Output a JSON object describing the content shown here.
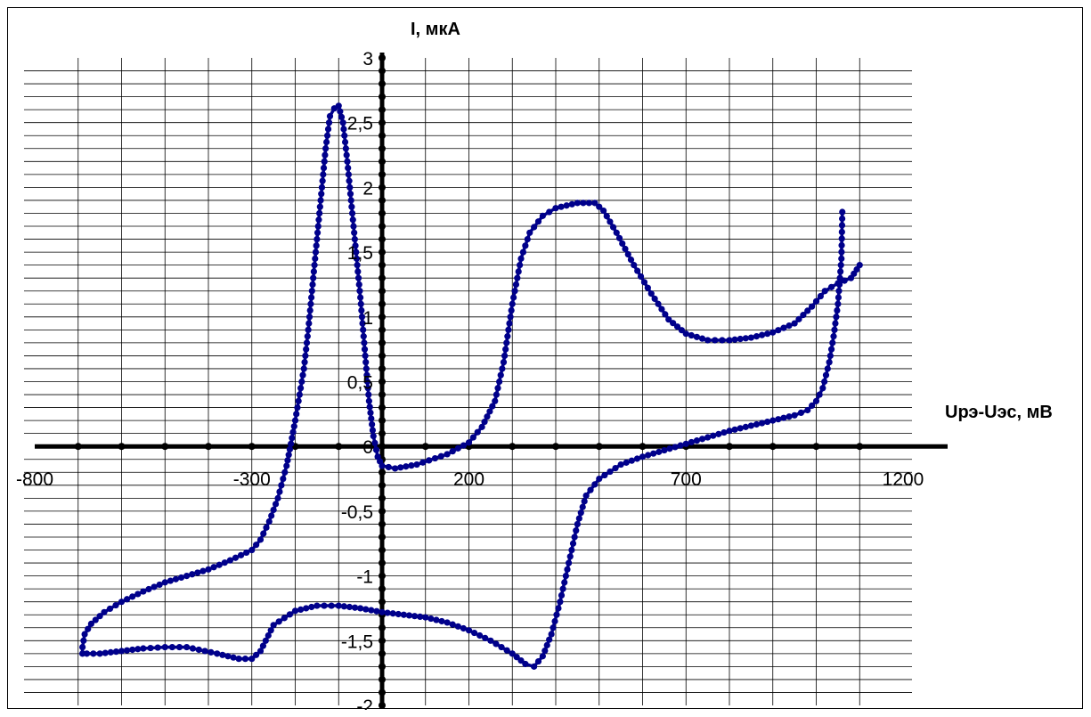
{
  "chart_data": {
    "type": "line",
    "title": "",
    "xlabel": "Uрэ-Uэс, мВ",
    "ylabel": "I, мкА",
    "xlim": [
      -800,
      1200
    ],
    "ylim": [
      -2,
      3
    ],
    "xticks": [
      -800,
      -300,
      200,
      700,
      1200
    ],
    "xtick_labels": [
      "-800",
      "-300",
      "200",
      "700",
      "1200"
    ],
    "yticks": [
      -2,
      -1.5,
      -1,
      -0.5,
      0,
      0.5,
      1,
      1.5,
      2,
      2.5,
      3
    ],
    "ytick_labels": [
      "-2",
      "-1,5",
      "-1",
      "-0,5",
      "0",
      "0,5",
      "1",
      "1,5",
      "2",
      "2,5",
      "3"
    ],
    "grid": true,
    "series_color": "#00008B",
    "series": [
      {
        "points": [
          [
            1060,
            1.81
          ],
          [
            1058,
            1.45
          ],
          [
            1050,
            1.1
          ],
          [
            1040,
            0.85
          ],
          [
            1030,
            0.65
          ],
          [
            1015,
            0.45
          ],
          [
            1000,
            0.35
          ],
          [
            980,
            0.28
          ],
          [
            950,
            0.24
          ],
          [
            900,
            0.2
          ],
          [
            850,
            0.16
          ],
          [
            800,
            0.12
          ],
          [
            750,
            0.07
          ],
          [
            700,
            0.02
          ],
          [
            650,
            -0.03
          ],
          [
            600,
            -0.08
          ],
          [
            550,
            -0.14
          ],
          [
            500,
            -0.25
          ],
          [
            470,
            -0.38
          ],
          [
            450,
            -0.6
          ],
          [
            430,
            -0.9
          ],
          [
            410,
            -1.2
          ],
          [
            390,
            -1.45
          ],
          [
            370,
            -1.62
          ],
          [
            350,
            -1.7
          ],
          [
            330,
            -1.68
          ],
          [
            300,
            -1.6
          ],
          [
            250,
            -1.5
          ],
          [
            200,
            -1.42
          ],
          [
            150,
            -1.36
          ],
          [
            100,
            -1.32
          ],
          [
            50,
            -1.3
          ],
          [
            0,
            -1.28
          ],
          [
            -50,
            -1.25
          ],
          [
            -100,
            -1.23
          ],
          [
            -150,
            -1.23
          ],
          [
            -200,
            -1.27
          ],
          [
            -250,
            -1.38
          ],
          [
            -280,
            -1.58
          ],
          [
            -300,
            -1.64
          ],
          [
            -330,
            -1.64
          ],
          [
            -380,
            -1.6
          ],
          [
            -450,
            -1.55
          ],
          [
            -500,
            -1.55
          ],
          [
            -550,
            -1.56
          ],
          [
            -600,
            -1.58
          ],
          [
            -650,
            -1.6
          ],
          [
            -680,
            -1.6
          ],
          [
            -690,
            -1.6
          ],
          [
            -690,
            -1.55
          ],
          [
            -685,
            -1.45
          ],
          [
            -670,
            -1.37
          ],
          [
            -640,
            -1.28
          ],
          [
            -600,
            -1.2
          ],
          [
            -550,
            -1.12
          ],
          [
            -500,
            -1.05
          ],
          [
            -450,
            -1.0
          ],
          [
            -400,
            -0.95
          ],
          [
            -350,
            -0.88
          ],
          [
            -300,
            -0.8
          ],
          [
            -280,
            -0.72
          ],
          [
            -260,
            -0.58
          ],
          [
            -240,
            -0.4
          ],
          [
            -220,
            -0.15
          ],
          [
            -210,
            0.02
          ],
          [
            -200,
            0.2
          ],
          [
            -190,
            0.4
          ],
          [
            -180,
            0.6
          ],
          [
            -170,
            0.9
          ],
          [
            -160,
            1.25
          ],
          [
            -150,
            1.6
          ],
          [
            -140,
            1.95
          ],
          [
            -130,
            2.3
          ],
          [
            -120,
            2.55
          ],
          [
            -110,
            2.61
          ],
          [
            -100,
            2.63
          ],
          [
            -90,
            2.5
          ],
          [
            -80,
            2.2
          ],
          [
            -70,
            1.85
          ],
          [
            -60,
            1.5
          ],
          [
            -50,
            1.15
          ],
          [
            -40,
            0.75
          ],
          [
            -30,
            0.35
          ],
          [
            -20,
            0.08
          ],
          [
            -10,
            -0.08
          ],
          [
            0,
            -0.15
          ],
          [
            30,
            -0.17
          ],
          [
            80,
            -0.14
          ],
          [
            150,
            -0.06
          ],
          [
            200,
            0.03
          ],
          [
            230,
            0.15
          ],
          [
            260,
            0.35
          ],
          [
            280,
            0.65
          ],
          [
            300,
            1.1
          ],
          [
            320,
            1.45
          ],
          [
            340,
            1.65
          ],
          [
            370,
            1.78
          ],
          [
            400,
            1.84
          ],
          [
            450,
            1.88
          ],
          [
            490,
            1.88
          ],
          [
            510,
            1.82
          ],
          [
            540,
            1.65
          ],
          [
            580,
            1.4
          ],
          [
            620,
            1.18
          ],
          [
            660,
            0.98
          ],
          [
            700,
            0.87
          ],
          [
            750,
            0.82
          ],
          [
            800,
            0.82
          ],
          [
            850,
            0.84
          ],
          [
            900,
            0.88
          ],
          [
            950,
            0.95
          ],
          [
            990,
            1.08
          ],
          [
            1020,
            1.2
          ],
          [
            1050,
            1.26
          ],
          [
            1080,
            1.3
          ],
          [
            1100,
            1.4
          ]
        ]
      }
    ]
  }
}
